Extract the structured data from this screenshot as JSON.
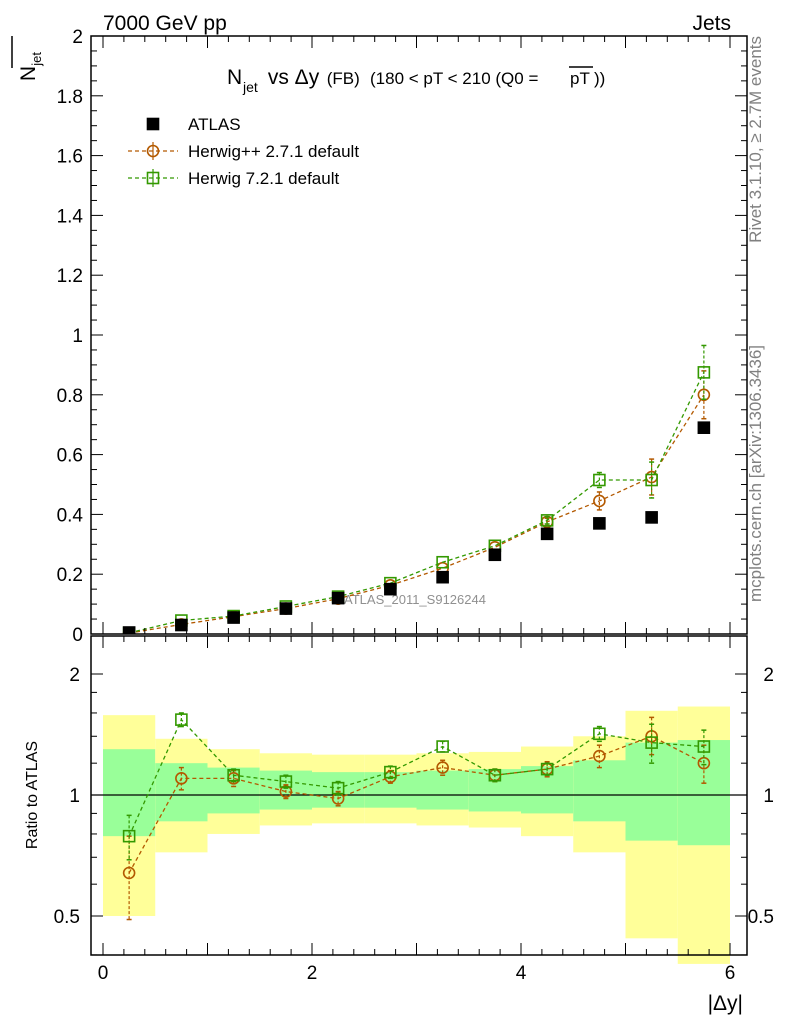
{
  "header": {
    "left": "7000 GeV pp",
    "right": "Jets"
  },
  "side_text": {
    "rivet": "Rivet 3.1.10, ≥ 2.7M events",
    "mcplots": "mcplots.cern.ch [arXiv:1306.3436]"
  },
  "title": {
    "main": "N",
    "main_sub": "jet",
    "vs": " vs Δy",
    "fb": " (FB) ",
    "range": "(180 < pT < 210 (Q0 =",
    "over": "pT",
    "end": "))"
  },
  "watermark": "ATLAS_2011_S9126244",
  "legend": [
    {
      "label": "ATLAS",
      "color": "#000000",
      "marker": "filled-square"
    },
    {
      "label": "Herwig++ 2.7.1 default",
      "color": "#b35900",
      "marker": "open-circle"
    },
    {
      "label": "Herwig 7.2.1 default",
      "color": "#339900",
      "marker": "open-square"
    }
  ],
  "ylabel_top": "N",
  "ylabel_top_sub": "jet",
  "ylabel_bottom": "Ratio to ATLAS",
  "xlabel": "|Δy|",
  "chart_data": [
    {
      "type": "scatter",
      "panel": "main",
      "xlim": [
        0,
        6
      ],
      "ylim": [
        0,
        2
      ],
      "grid": false,
      "legend_position": "top-left",
      "yticks": [
        "0",
        "0.2",
        "0.4",
        "0.6",
        "0.8",
        "1",
        "1.2",
        "1.4",
        "1.6",
        "1.8",
        "2"
      ],
      "x": [
        0.25,
        0.75,
        1.25,
        1.75,
        2.25,
        2.75,
        3.25,
        3.75,
        4.25,
        4.75,
        5.25,
        5.75
      ],
      "series": [
        {
          "name": "ATLAS",
          "values": [
            0.005,
            0.03,
            0.055,
            0.085,
            0.12,
            0.15,
            0.19,
            0.265,
            0.335,
            0.37,
            0.39,
            0.69
          ]
        },
        {
          "name": "Herwig++ 2.7.1 default",
          "values": [
            0.003,
            0.032,
            0.058,
            0.085,
            0.118,
            0.163,
            0.22,
            0.29,
            0.375,
            0.445,
            0.525,
            0.8
          ],
          "errors": [
            0.001,
            0.003,
            0.003,
            0.003,
            0.004,
            0.005,
            0.006,
            0.008,
            0.012,
            0.03,
            0.06,
            0.08
          ]
        },
        {
          "name": "Herwig 7.2.1 default",
          "values": [
            0.004,
            0.045,
            0.06,
            0.092,
            0.125,
            0.17,
            0.24,
            0.295,
            0.38,
            0.515,
            0.515,
            0.875
          ],
          "errors": [
            0.001,
            0.003,
            0.003,
            0.003,
            0.004,
            0.005,
            0.006,
            0.008,
            0.012,
            0.025,
            0.06,
            0.09
          ]
        }
      ]
    },
    {
      "type": "scatter",
      "panel": "ratio",
      "xlim": [
        0,
        6
      ],
      "ylim": [
        0.35,
        2.25
      ],
      "log_y": true,
      "xlabel": "|Δy|",
      "ylabel": "Ratio to ATLAS",
      "xticks": [
        "0",
        "2",
        "4",
        "6"
      ],
      "yticks": [
        "0.5",
        "1",
        "2"
      ],
      "x": [
        0.25,
        0.75,
        1.25,
        1.75,
        2.25,
        2.75,
        3.25,
        3.75,
        4.25,
        4.75,
        5.25,
        5.75
      ],
      "bands": {
        "x_edges": [
          0,
          0.5,
          1,
          1.5,
          2,
          2.5,
          3,
          3.5,
          4,
          4.5,
          5,
          5.5,
          6
        ],
        "yellow_low": [
          0.5,
          0.72,
          0.8,
          0.84,
          0.85,
          0.85,
          0.84,
          0.83,
          0.79,
          0.72,
          0.44,
          0.38
        ],
        "yellow_high": [
          1.58,
          1.38,
          1.3,
          1.27,
          1.26,
          1.26,
          1.27,
          1.28,
          1.32,
          1.4,
          1.62,
          1.66
        ],
        "green_low": [
          0.79,
          0.86,
          0.9,
          0.92,
          0.93,
          0.93,
          0.92,
          0.91,
          0.9,
          0.86,
          0.77,
          0.75
        ],
        "green_high": [
          1.3,
          1.2,
          1.17,
          1.15,
          1.14,
          1.14,
          1.15,
          1.16,
          1.18,
          1.22,
          1.35,
          1.37
        ]
      },
      "series": [
        {
          "name": "Herwig++ 2.7.1 default",
          "values": [
            0.64,
            1.1,
            1.1,
            1.02,
            0.98,
            1.11,
            1.17,
            1.12,
            1.16,
            1.25,
            1.4,
            1.2
          ],
          "err_low": [
            0.15,
            0.07,
            0.05,
            0.04,
            0.04,
            0.04,
            0.05,
            0.04,
            0.05,
            0.08,
            0.14,
            0.13
          ],
          "err_high": [
            0.15,
            0.07,
            0.05,
            0.04,
            0.04,
            0.04,
            0.05,
            0.04,
            0.05,
            0.08,
            0.16,
            0.13
          ]
        },
        {
          "name": "Herwig 7.2.1 default",
          "values": [
            0.79,
            1.54,
            1.12,
            1.08,
            1.04,
            1.14,
            1.32,
            1.12,
            1.16,
            1.42,
            1.35,
            1.32
          ],
          "err_low": [
            0.1,
            0.06,
            0.04,
            0.04,
            0.04,
            0.04,
            0.04,
            0.04,
            0.04,
            0.06,
            0.15,
            0.13
          ],
          "err_high": [
            0.1,
            0.06,
            0.04,
            0.04,
            0.04,
            0.04,
            0.04,
            0.04,
            0.04,
            0.06,
            0.15,
            0.13
          ]
        }
      ]
    }
  ]
}
